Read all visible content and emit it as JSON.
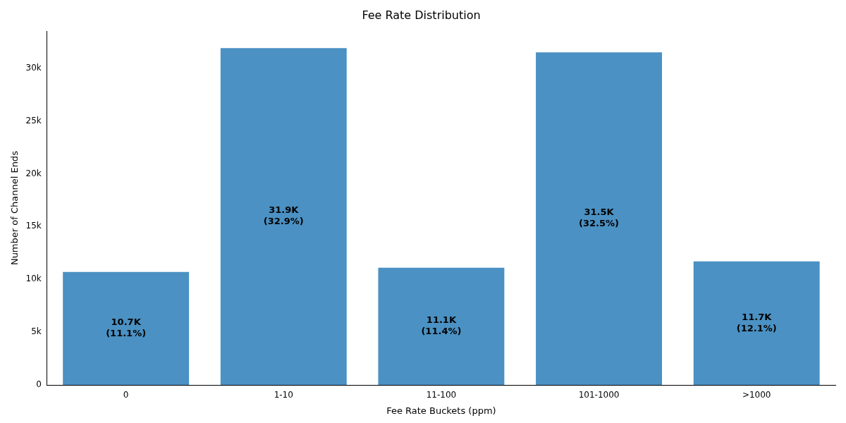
{
  "chart_data": {
    "type": "bar",
    "title": "Fee Rate Distribution",
    "x_label": "Fee Rate Buckets (ppm)",
    "y_label": "Number of Channel Ends",
    "categories": [
      "0",
      "1-10",
      "11-100",
      "101-1000",
      ">1000"
    ],
    "values": [
      10700,
      31900,
      11100,
      31500,
      11700
    ],
    "value_labels": [
      "10.7K\n(11.1%)",
      "31.9K\n(32.9%)",
      "11.1K\n(11.4%)",
      "31.5K\n(32.5%)",
      "11.7K\n(12.1%)"
    ],
    "data_labels": true,
    "color": "#4b91c3",
    "ylim": [
      0,
      33500
    ],
    "yticks": [
      0,
      {
        "value": 5000,
        "label": "5k"
      },
      {
        "value": 10000,
        "label": "10k"
      },
      {
        "value": 15000,
        "label": "15k"
      },
      {
        "value": 20000,
        "label": "20k"
      },
      {
        "value": 25000,
        "label": "25k"
      },
      {
        "value": 30000,
        "label": "30k"
      }
    ],
    "grid": false
  }
}
